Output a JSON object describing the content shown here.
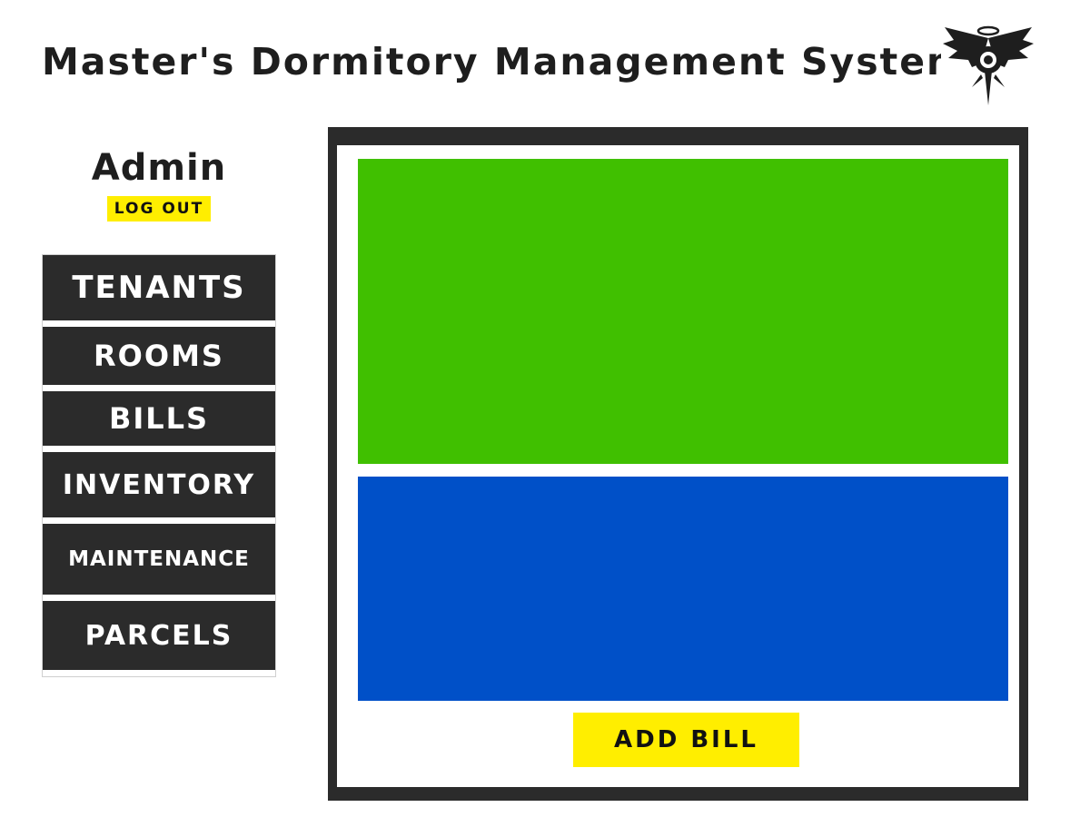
{
  "header": {
    "title": "Master's Dormitory Management System",
    "logo_icon": "winged-emblem-icon"
  },
  "user": {
    "role": "Admin",
    "logout_label": "LOG OUT"
  },
  "sidebar": {
    "items": [
      {
        "label": "TENANTS"
      },
      {
        "label": "ROOMS"
      },
      {
        "label": "BILLS"
      },
      {
        "label": "INVENTORY"
      },
      {
        "label": "MAINTENANCE"
      },
      {
        "label": "PARCELS"
      }
    ]
  },
  "main": {
    "add_button_label": "ADD BILL"
  },
  "colors": {
    "accent_yellow": "#ffee00",
    "dark": "#2b2b2b",
    "panel_green": "#40c000",
    "panel_blue": "#0050c8"
  }
}
